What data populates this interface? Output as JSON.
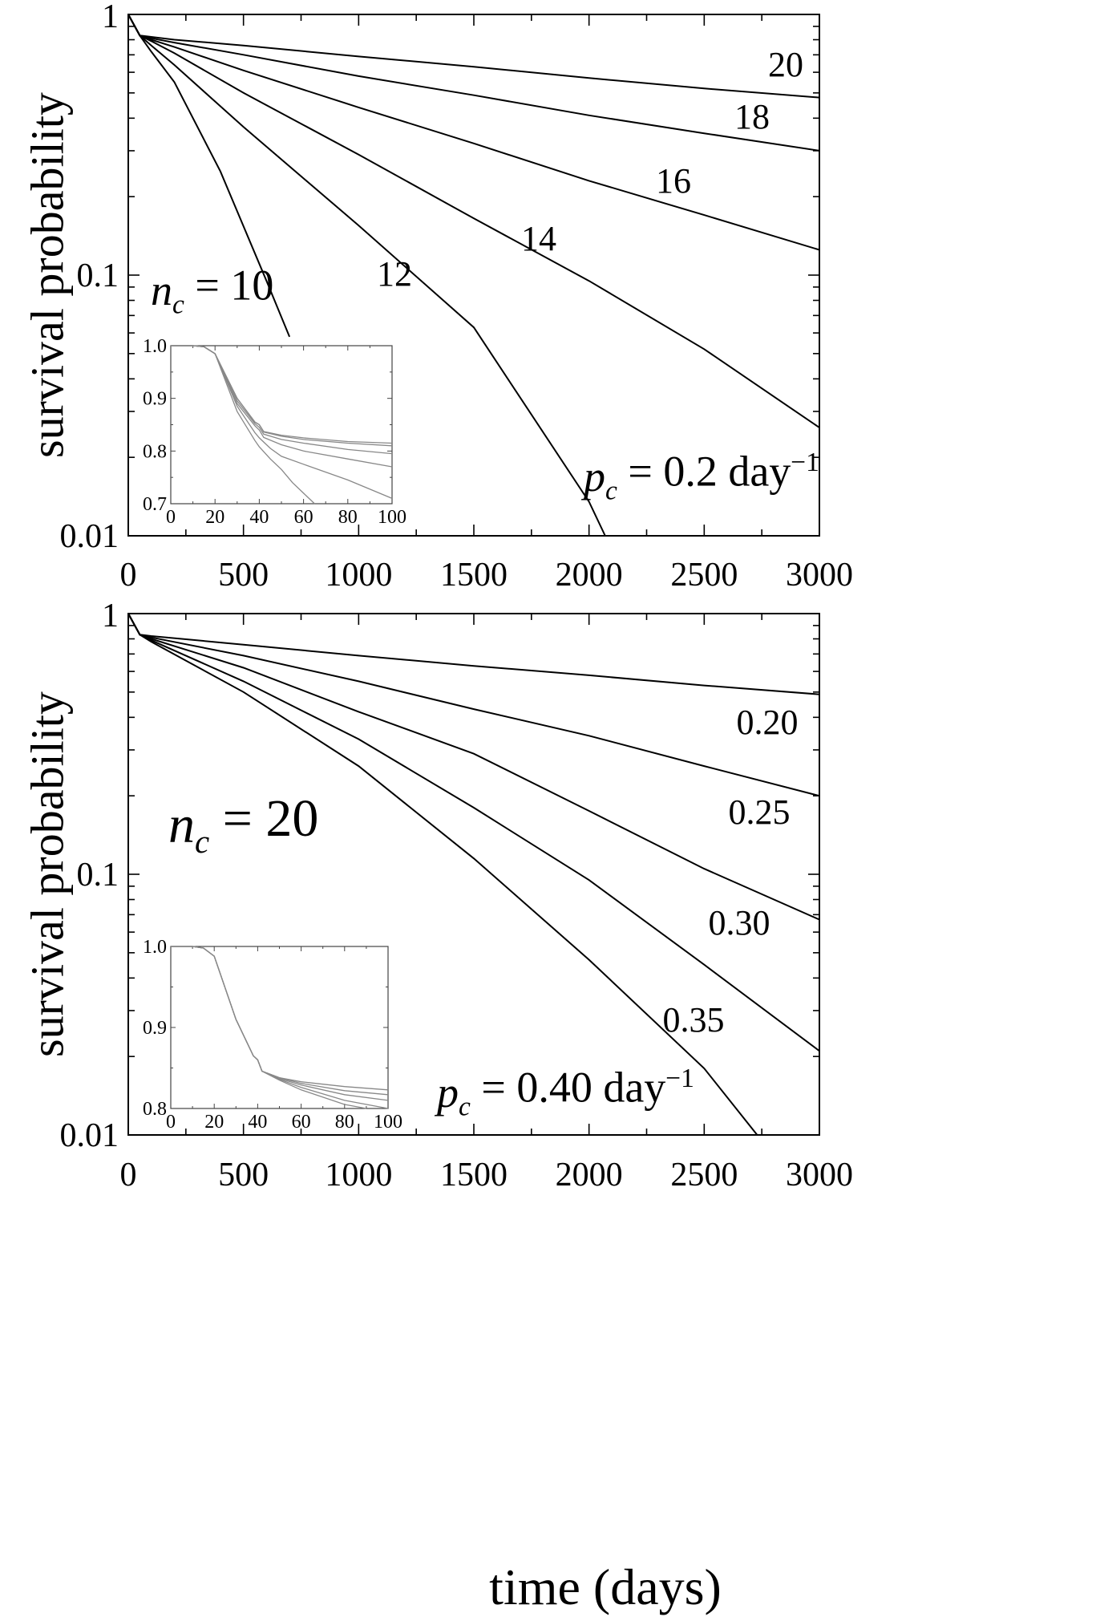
{
  "xlabel": "time (days)",
  "chart_data": [
    {
      "type": "line",
      "ylabel": "survival probability",
      "xlabel": "time (days)",
      "xlim": [
        0,
        3000
      ],
      "ylim": [
        0.01,
        1
      ],
      "yscale": "log",
      "xticks": [
        "0",
        "500",
        "1000",
        "1500",
        "2000",
        "2500",
        "3000"
      ],
      "yticks": [
        "0.01",
        "0.1",
        "1"
      ],
      "parameter": {
        "symbol": "p",
        "subscript": "c",
        "eq": "= 0.2 day",
        "exponent": "−1"
      },
      "series_label_prefix": {
        "symbol": "n",
        "subscript": "c",
        "eq": "= 10"
      },
      "series": [
        {
          "name": "10",
          "x": [
            0,
            50,
            100,
            200,
            400,
            600,
            700
          ],
          "y": [
            1.0,
            0.83,
            0.72,
            0.55,
            0.25,
            0.095,
            0.058
          ]
        },
        {
          "name": "12",
          "x": [
            0,
            50,
            100,
            200,
            500,
            1000,
            1500,
            2000,
            2070
          ],
          "y": [
            1.0,
            0.83,
            0.76,
            0.64,
            0.37,
            0.155,
            0.063,
            0.0135,
            0.01
          ]
        },
        {
          "name": "14",
          "x": [
            0,
            50,
            100,
            200,
            500,
            1000,
            1500,
            2000,
            2500,
            3000
          ],
          "y": [
            1.0,
            0.83,
            0.79,
            0.71,
            0.5,
            0.29,
            0.165,
            0.095,
            0.052,
            0.026
          ]
        },
        {
          "name": "16",
          "x": [
            0,
            50,
            100,
            200,
            500,
            1000,
            1500,
            2000,
            2500,
            3000
          ],
          "y": [
            1.0,
            0.83,
            0.8,
            0.75,
            0.61,
            0.44,
            0.32,
            0.23,
            0.17,
            0.125
          ]
        },
        {
          "name": "18",
          "x": [
            0,
            50,
            100,
            200,
            500,
            1000,
            1500,
            2000,
            2500,
            3000
          ],
          "y": [
            1.0,
            0.83,
            0.81,
            0.78,
            0.7,
            0.58,
            0.49,
            0.41,
            0.35,
            0.3
          ]
        },
        {
          "name": "20",
          "x": [
            0,
            50,
            100,
            200,
            500,
            1000,
            1500,
            2000,
            2500,
            3000
          ],
          "y": [
            1.0,
            0.83,
            0.82,
            0.8,
            0.76,
            0.69,
            0.63,
            0.57,
            0.52,
            0.48
          ]
        }
      ],
      "inset": {
        "xlim": [
          0,
          100
        ],
        "ylim": [
          0.7,
          1.0
        ],
        "xticks": [
          "0",
          "20",
          "40",
          "60",
          "80",
          "100"
        ],
        "yticks": [
          "0.7",
          "0.8",
          "0.9",
          "1.0"
        ],
        "series": [
          {
            "name": "20",
            "x": [
              0,
              10,
              15,
              20,
              30,
              38,
              40,
              42,
              50,
              60,
              80,
              100
            ],
            "y": [
              1.0,
              1.0,
              0.998,
              0.985,
              0.9,
              0.855,
              0.85,
              0.837,
              0.83,
              0.825,
              0.818,
              0.815
            ]
          },
          {
            "name": "18",
            "x": [
              0,
              10,
              15,
              20,
              30,
              38,
              40,
              42,
              50,
              60,
              80,
              100
            ],
            "y": [
              1.0,
              1.0,
              0.998,
              0.985,
              0.9,
              0.855,
              0.85,
              0.836,
              0.828,
              0.822,
              0.815,
              0.81
            ]
          },
          {
            "name": "16",
            "x": [
              0,
              10,
              15,
              20,
              30,
              38,
              40,
              42,
              50,
              60,
              80,
              100
            ],
            "y": [
              1.0,
              1.0,
              0.998,
              0.985,
              0.895,
              0.852,
              0.845,
              0.832,
              0.822,
              0.815,
              0.803,
              0.795
            ]
          },
          {
            "name": "14",
            "x": [
              0,
              10,
              15,
              20,
              30,
              38,
              40,
              42,
              50,
              60,
              80,
              100
            ],
            "y": [
              1.0,
              1.0,
              0.998,
              0.985,
              0.89,
              0.848,
              0.84,
              0.826,
              0.812,
              0.8,
              0.785,
              0.77
            ]
          },
          {
            "name": "12",
            "x": [
              0,
              10,
              15,
              20,
              30,
              38,
              40,
              45,
              50,
              60,
              80,
              100
            ],
            "y": [
              1.0,
              1.0,
              0.998,
              0.985,
              0.885,
              0.835,
              0.825,
              0.805,
              0.79,
              0.775,
              0.745,
              0.71
            ]
          },
          {
            "name": "10",
            "x": [
              0,
              10,
              15,
              20,
              30,
              38,
              40,
              45,
              50,
              55,
              60,
              65
            ],
            "y": [
              1.0,
              1.0,
              0.998,
              0.985,
              0.875,
              0.82,
              0.808,
              0.785,
              0.765,
              0.74,
              0.72,
              0.7
            ]
          }
        ]
      }
    },
    {
      "type": "line",
      "ylabel": "survival probability",
      "xlabel": "time (days)",
      "xlim": [
        0,
        3000
      ],
      "ylim": [
        0.01,
        1
      ],
      "yscale": "log",
      "xticks": [
        "0",
        "500",
        "1000",
        "1500",
        "2000",
        "2500",
        "3000"
      ],
      "yticks": [
        "0.01",
        "0.1",
        "1"
      ],
      "parameter": {
        "symbol": "n",
        "subscript": "c",
        "eq": "= 20"
      },
      "series_label_prefix": {
        "symbol": "p",
        "subscript": "c",
        "eq": "= 0.40 day",
        "exponent": "−1"
      },
      "series": [
        {
          "name": "0.20",
          "x": [
            0,
            50,
            100,
            500,
            1000,
            1500,
            2000,
            2500,
            3000
          ],
          "y": [
            1.0,
            0.83,
            0.82,
            0.76,
            0.69,
            0.63,
            0.58,
            0.53,
            0.49
          ]
        },
        {
          "name": "0.25",
          "x": [
            0,
            50,
            100,
            500,
            1000,
            1500,
            2000,
            2500,
            3000
          ],
          "y": [
            1.0,
            0.83,
            0.81,
            0.69,
            0.55,
            0.43,
            0.34,
            0.26,
            0.2
          ]
        },
        {
          "name": "0.30",
          "x": [
            0,
            50,
            100,
            500,
            1000,
            1500,
            2000,
            2500,
            3000
          ],
          "y": [
            1.0,
            0.83,
            0.8,
            0.62,
            0.42,
            0.29,
            0.175,
            0.105,
            0.067
          ]
        },
        {
          "name": "0.35",
          "x": [
            0,
            50,
            100,
            500,
            1000,
            1500,
            2000,
            2500,
            3000
          ],
          "y": [
            1.0,
            0.83,
            0.79,
            0.55,
            0.33,
            0.18,
            0.095,
            0.045,
            0.021
          ]
        },
        {
          "name": "0.40",
          "x": [
            0,
            50,
            100,
            500,
            1000,
            1500,
            2000,
            2500,
            2730
          ],
          "y": [
            1.0,
            0.83,
            0.78,
            0.5,
            0.26,
            0.115,
            0.047,
            0.018,
            0.01
          ]
        }
      ],
      "inset": {
        "xlim": [
          0,
          100
        ],
        "ylim": [
          0.8,
          1.0
        ],
        "xticks": [
          "0",
          "20",
          "40",
          "60",
          "80",
          "100"
        ],
        "yticks": [
          "0.8",
          "0.9",
          "1.0"
        ],
        "series": [
          {
            "name": "0.20",
            "x": [
              0,
              10,
              15,
              20,
              30,
              38,
              40,
              42,
              50,
              60,
              80,
              100
            ],
            "y": [
              1.0,
              1.0,
              0.998,
              0.988,
              0.91,
              0.865,
              0.86,
              0.846,
              0.838,
              0.833,
              0.827,
              0.823
            ]
          },
          {
            "name": "0.25",
            "x": [
              0,
              10,
              15,
              20,
              30,
              38,
              40,
              42,
              50,
              60,
              80,
              100
            ],
            "y": [
              1.0,
              1.0,
              0.998,
              0.988,
              0.91,
              0.865,
              0.86,
              0.846,
              0.838,
              0.831,
              0.822,
              0.817
            ]
          },
          {
            "name": "0.30",
            "x": [
              0,
              10,
              15,
              20,
              30,
              38,
              40,
              42,
              50,
              60,
              80,
              100
            ],
            "y": [
              1.0,
              1.0,
              0.998,
              0.988,
              0.91,
              0.865,
              0.86,
              0.846,
              0.837,
              0.829,
              0.817,
              0.81
            ]
          },
          {
            "name": "0.35",
            "x": [
              0,
              10,
              15,
              20,
              30,
              38,
              40,
              42,
              50,
              60,
              80,
              100
            ],
            "y": [
              1.0,
              1.0,
              0.998,
              0.988,
              0.91,
              0.865,
              0.86,
              0.846,
              0.836,
              0.826,
              0.81,
              0.8
            ]
          },
          {
            "name": "0.40",
            "x": [
              0,
              10,
              15,
              20,
              30,
              38,
              40,
              42,
              50,
              60,
              80,
              90
            ],
            "y": [
              1.0,
              1.0,
              0.998,
              0.988,
              0.91,
              0.865,
              0.86,
              0.846,
              0.835,
              0.823,
              0.805,
              0.8
            ]
          }
        ]
      }
    }
  ]
}
